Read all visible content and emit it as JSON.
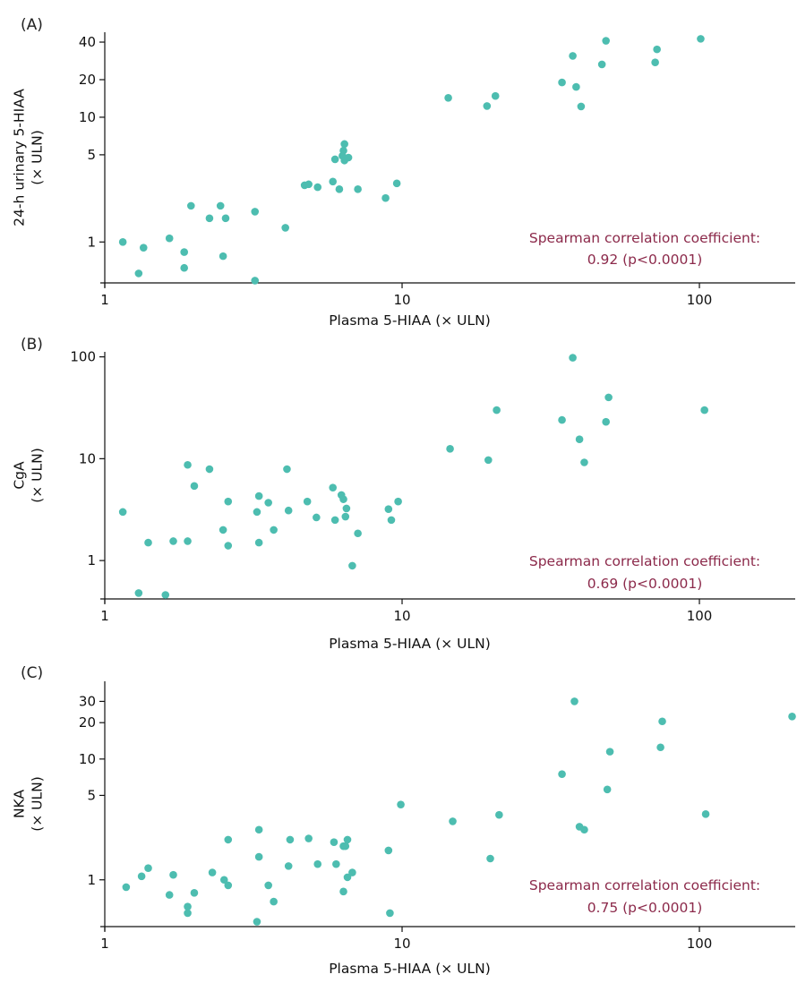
{
  "colors": {
    "point": "#4dbdb0",
    "annotation": "#8c2a4b",
    "axis": "#111111"
  },
  "chart_data": [
    {
      "panel": "(A)",
      "type": "scatter",
      "xlabel": "Plasma 5-HIAA (× ULN)",
      "ylabel": [
        "24-h urinary 5-HIAA",
        "(× ULN)"
      ],
      "xscale": "log",
      "yscale": "log",
      "xlim": [
        1,
        210
      ],
      "ylim": [
        0.47,
        48
      ],
      "xticks": [
        1,
        10,
        100
      ],
      "xtick_labels": [
        "1",
        "10",
        "100"
      ],
      "yticks": [
        1,
        5,
        10,
        20,
        40
      ],
      "ytick_labels": [
        "1",
        "5",
        "10",
        "20",
        "40"
      ],
      "grid": false,
      "annotation": [
        "Spearman correlation coefficient:",
        "0.92 (p<0.0001)"
      ],
      "points": [
        [
          1.15,
          1.0
        ],
        [
          1.3,
          0.56
        ],
        [
          1.35,
          0.9
        ],
        [
          1.65,
          1.07
        ],
        [
          1.85,
          0.83
        ],
        [
          1.85,
          0.62
        ],
        [
          1.95,
          1.95
        ],
        [
          2.25,
          1.55
        ],
        [
          2.45,
          1.95
        ],
        [
          2.5,
          0.77
        ],
        [
          2.55,
          1.55
        ],
        [
          3.2,
          1.75
        ],
        [
          3.2,
          0.49
        ],
        [
          4.05,
          1.3
        ],
        [
          4.7,
          2.85
        ],
        [
          4.85,
          2.9
        ],
        [
          5.2,
          2.75
        ],
        [
          5.85,
          3.05
        ],
        [
          5.95,
          4.6
        ],
        [
          6.15,
          2.65
        ],
        [
          6.3,
          4.9
        ],
        [
          6.35,
          5.4
        ],
        [
          6.4,
          6.1
        ],
        [
          6.4,
          4.5
        ],
        [
          6.6,
          4.75
        ],
        [
          7.1,
          2.65
        ],
        [
          8.8,
          2.25
        ],
        [
          9.6,
          2.95
        ],
        [
          14.3,
          14.3
        ],
        [
          19.3,
          12.3
        ],
        [
          20.6,
          14.8
        ],
        [
          34.5,
          19.0
        ],
        [
          37.5,
          31.0
        ],
        [
          38.5,
          17.5
        ],
        [
          40.0,
          12.2
        ],
        [
          47.0,
          26.5
        ],
        [
          48.5,
          41.0
        ],
        [
          71.0,
          27.5
        ],
        [
          72.0,
          35.0
        ],
        [
          101.0,
          42.5
        ]
      ]
    },
    {
      "panel": "(B)",
      "type": "scatter",
      "xlabel": "Plasma 5-HIAA (× ULN)",
      "ylabel": [
        "CgA",
        "(× ULN)"
      ],
      "xscale": "log",
      "yscale": "log",
      "xlim": [
        1,
        210
      ],
      "ylim": [
        0.42,
        112
      ],
      "xticks": [
        1,
        10,
        100
      ],
      "xtick_labels": [
        "1",
        "10",
        "100"
      ],
      "yticks": [
        1,
        10,
        100
      ],
      "ytick_labels": [
        "1",
        "10",
        "100"
      ],
      "grid": false,
      "annotation": [
        "Spearman correlation coefficient:",
        "0.69 (p<0.0001)"
      ],
      "points": [
        [
          1.15,
          3.0
        ],
        [
          1.3,
          0.48
        ],
        [
          1.4,
          1.5
        ],
        [
          1.6,
          0.46
        ],
        [
          1.7,
          1.55
        ],
        [
          1.9,
          1.55
        ],
        [
          1.9,
          8.7
        ],
        [
          2.0,
          5.4
        ],
        [
          2.25,
          7.9
        ],
        [
          2.5,
          2.0
        ],
        [
          2.6,
          1.4
        ],
        [
          2.6,
          3.8
        ],
        [
          3.25,
          3.0
        ],
        [
          3.3,
          4.3
        ],
        [
          3.3,
          1.5
        ],
        [
          3.55,
          3.7
        ],
        [
          3.7,
          2.0
        ],
        [
          4.1,
          7.9
        ],
        [
          4.15,
          3.1
        ],
        [
          4.8,
          3.8
        ],
        [
          5.15,
          2.65
        ],
        [
          5.85,
          5.2
        ],
        [
          5.95,
          2.5
        ],
        [
          6.25,
          4.4
        ],
        [
          6.35,
          4.0
        ],
        [
          6.45,
          2.7
        ],
        [
          6.5,
          3.25
        ],
        [
          6.8,
          0.89
        ],
        [
          7.1,
          1.85
        ],
        [
          9.0,
          3.2
        ],
        [
          9.2,
          2.5
        ],
        [
          9.7,
          3.8
        ],
        [
          14.5,
          12.5
        ],
        [
          19.5,
          9.7
        ],
        [
          20.8,
          30.0
        ],
        [
          34.5,
          24.0
        ],
        [
          37.5,
          98.0
        ],
        [
          39.5,
          15.5
        ],
        [
          41.0,
          9.2
        ],
        [
          48.5,
          23.0
        ],
        [
          49.5,
          40.0
        ],
        [
          104.0,
          30.0
        ]
      ]
    },
    {
      "panel": "(C)",
      "type": "scatter",
      "xlabel": "Plasma 5-HIAA (× ULN)",
      "ylabel": [
        "NKA",
        "(× ULN)"
      ],
      "xscale": "log",
      "yscale": "log",
      "xlim": [
        1,
        210
      ],
      "ylim": [
        0.41,
        44
      ],
      "xticks": [
        1,
        10,
        100
      ],
      "xtick_labels": [
        "1",
        "10",
        "100"
      ],
      "yticks": [
        1,
        5,
        10,
        20,
        30
      ],
      "ytick_labels": [
        "1",
        "5",
        "10",
        "20",
        "30"
      ],
      "grid": false,
      "annotation": [
        "Spearman correlation coefficient:",
        "0.75 (p<0.0001)"
      ],
      "points": [
        [
          1.18,
          0.87
        ],
        [
          1.33,
          1.07
        ],
        [
          1.4,
          1.25
        ],
        [
          1.65,
          0.75
        ],
        [
          1.7,
          1.1
        ],
        [
          1.9,
          0.53
        ],
        [
          1.9,
          0.6
        ],
        [
          2.0,
          0.78
        ],
        [
          2.3,
          1.15
        ],
        [
          2.52,
          1.0
        ],
        [
          2.6,
          0.9
        ],
        [
          2.6,
          2.15
        ],
        [
          3.25,
          0.45
        ],
        [
          3.3,
          2.6
        ],
        [
          3.3,
          1.55
        ],
        [
          3.55,
          0.9
        ],
        [
          3.7,
          0.66
        ],
        [
          4.15,
          1.3
        ],
        [
          4.2,
          2.15
        ],
        [
          4.85,
          2.2
        ],
        [
          5.2,
          1.35
        ],
        [
          5.9,
          2.05
        ],
        [
          6.0,
          1.35
        ],
        [
          6.35,
          1.9
        ],
        [
          6.35,
          0.8
        ],
        [
          6.45,
          1.9
        ],
        [
          6.55,
          1.05
        ],
        [
          6.55,
          2.15
        ],
        [
          6.8,
          1.15
        ],
        [
          9.0,
          1.75
        ],
        [
          9.1,
          0.53
        ],
        [
          9.9,
          4.2
        ],
        [
          14.8,
          3.05
        ],
        [
          19.8,
          1.5
        ],
        [
          21.2,
          3.45
        ],
        [
          34.5,
          7.5
        ],
        [
          38.0,
          30.0
        ],
        [
          39.5,
          2.75
        ],
        [
          41.0,
          2.6
        ],
        [
          49.0,
          5.6
        ],
        [
          50.0,
          11.5
        ],
        [
          74.0,
          12.5
        ],
        [
          75.0,
          20.5
        ],
        [
          105.0,
          3.5
        ],
        [
          205.0,
          22.5
        ]
      ]
    }
  ]
}
